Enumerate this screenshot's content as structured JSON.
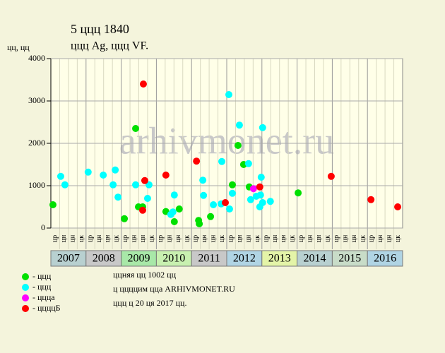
{
  "chart_data": {
    "type": "scatter",
    "title": "5 ццц 1840",
    "subtitle": "ццц Ag, ццц VF.",
    "y_label": "цц, цц",
    "watermark": "arhivmonet.ru",
    "categories": [
      "2007",
      "2008",
      "2009",
      "2010",
      "2011",
      "2012",
      "2013",
      "2014",
      "2015",
      "2016"
    ],
    "category_colors": [
      "#b8d0d0",
      "#c8c8c8",
      "#a8e8a8",
      "#c8f0b0",
      "#c8c8c8",
      "#b0d4e4",
      "#e4f4a8",
      "#b8d0d0",
      "#c8dcc8",
      "#b0d4e4"
    ],
    "quarter_labels": [
      "цр",
      "цн",
      "цн",
      "цк"
    ],
    "xlim": [
      2007,
      2017
    ],
    "ylim": [
      0,
      4000
    ],
    "yticks": [
      0,
      1000,
      2000,
      3000,
      4000
    ],
    "grid": true,
    "series": [
      {
        "name": "- ццц",
        "color": "#00e000",
        "x": [
          2007.06,
          2009.41,
          2009.49,
          2009.61,
          2009.09,
          2010.27,
          2010.65,
          2010.51,
          2011.2,
          2011.22,
          2011.54,
          2012.32,
          2012.48,
          2012.16,
          2012.64,
          2014.03
        ],
        "values": [
          550,
          2350,
          500,
          500,
          220,
          390,
          450,
          150,
          180,
          100,
          270,
          1950,
          1500,
          1020,
          970,
          830
        ]
      },
      {
        "name": "- ццц",
        "color": "#00ffff",
        "x": [
          2007.28,
          2007.4,
          2008.06,
          2008.49,
          2008.83,
          2008.77,
          2008.91,
          2009.41,
          2009.79,
          2009.75,
          2010.41,
          2010.47,
          2010.51,
          2011.32,
          2011.34,
          2011.62,
          2011.86,
          2011.84,
          2012.06,
          2012.08,
          2012.16,
          2012.36,
          2012.62,
          2012.68,
          2012.84,
          2012.96,
          2012.98,
          2013.02,
          2012.94,
          2013.02,
          2013.24
        ],
        "values": [
          1220,
          1020,
          1320,
          1250,
          1370,
          1020,
          730,
          1020,
          1020,
          700,
          320,
          380,
          780,
          1130,
          770,
          550,
          1570,
          570,
          3150,
          450,
          820,
          2430,
          1520,
          670,
          750,
          780,
          1200,
          2370,
          500,
          600,
          630
        ]
      },
      {
        "name": "- ццца",
        "color": "#ff00ff",
        "x": [
          2012.76
        ],
        "values": [
          930
        ]
      },
      {
        "name": "- ццццБ",
        "color": "#ff0000",
        "x": [
          2009.63,
          2009.67,
          2009.61,
          2010.27,
          2011.14,
          2011.96,
          2012.94,
          2014.97,
          2016.1,
          2016.86
        ],
        "values": [
          3400,
          1120,
          420,
          1250,
          1580,
          600,
          970,
          1220,
          670,
          500
        ]
      }
    ],
    "notes": [
      "ццняя цц 1002 цц",
      "ц ццццим цца ARHIVMONET.RU",
      "ццц ц 20 ця 2017 цц."
    ]
  }
}
